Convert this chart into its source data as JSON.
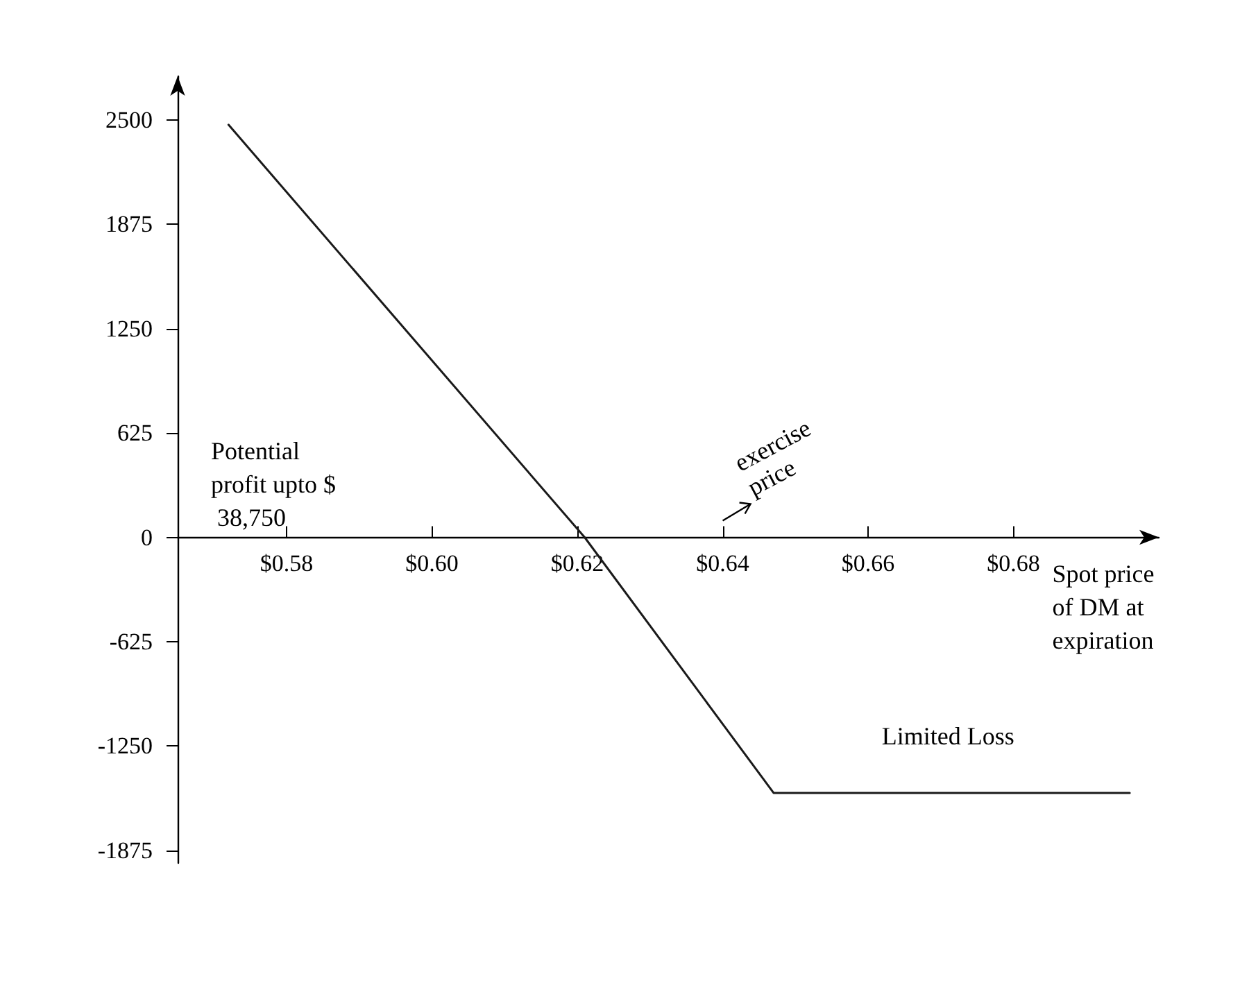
{
  "chart_data": {
    "type": "line",
    "x": [
      0.572,
      0.621,
      0.647,
      0.696
    ],
    "series": [
      {
        "color": "#1a1a1a",
        "values": [
          2470,
          0,
          -1530,
          -1530
        ]
      }
    ],
    "xlabel": "Spot price of DM at expiration",
    "xlim": [
      0.565,
      0.7
    ],
    "xticks": [
      {
        "value": 0.58,
        "label": "$0.58"
      },
      {
        "value": 0.6,
        "label": "$0.60"
      },
      {
        "value": 0.62,
        "label": "$0.62"
      },
      {
        "value": 0.64,
        "label": "$0.64"
      },
      {
        "value": 0.66,
        "label": "$0.66"
      },
      {
        "value": 0.68,
        "label": "$0.68"
      }
    ],
    "ylim": [
      -1950,
      2760
    ],
    "yticks": [
      -1875,
      -1250,
      -625,
      0,
      625,
      1250,
      1875,
      2500
    ],
    "annotations": [
      "Potential profit upto $ 38,750",
      "exercise price",
      {
        "text": "Limited Loss",
        "x": 0.671,
        "y": -1530
      }
    ],
    "marker": "none",
    "line_style": "solid"
  }
}
